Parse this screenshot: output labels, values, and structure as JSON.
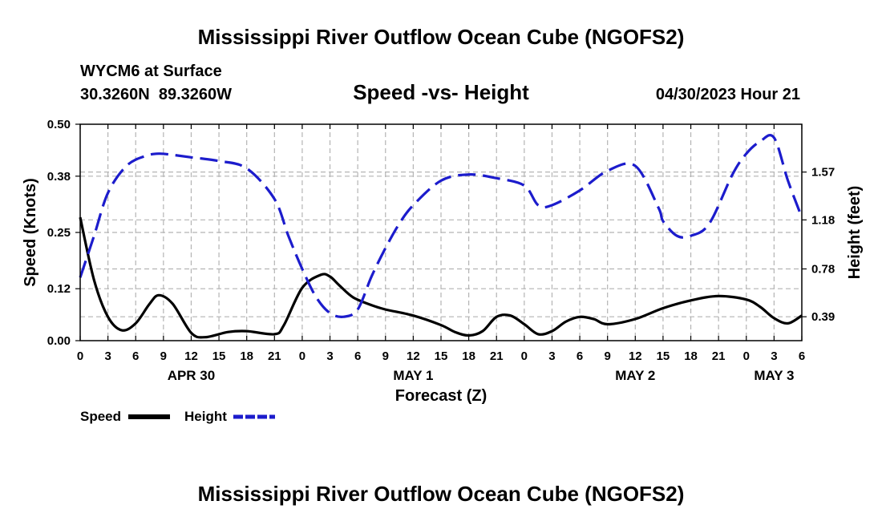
{
  "page": {
    "title": "Mississippi River Outflow Ocean Cube (NGOFS2)",
    "footer_title": "Mississippi River Outflow Ocean Cube (NGOFS2)"
  },
  "header": {
    "station": "WYCM6 at Surface",
    "coords": "30.3260N  89.3260W",
    "subtitle": "Speed -vs- Height",
    "datetime": "04/30/2023 Hour 21"
  },
  "chart_data": {
    "type": "line",
    "title": "Speed -vs- Height",
    "xlabel": "Forecast (Z)",
    "ylabel": "Speed (Knots)",
    "y2label": "Height (feet)",
    "x_range_hours": [
      0,
      78
    ],
    "xtick_hours": [
      0,
      3,
      6,
      9,
      12,
      15,
      18,
      21,
      24,
      27,
      30,
      33,
      36,
      39,
      42,
      45,
      48,
      51,
      54,
      57,
      60,
      63,
      66,
      69,
      72,
      75,
      78
    ],
    "xtick_labels": [
      "0",
      "3",
      "6",
      "9",
      "12",
      "15",
      "18",
      "21",
      "0",
      "3",
      "6",
      "9",
      "12",
      "15",
      "18",
      "21",
      "0",
      "3",
      "6",
      "9",
      "12",
      "15",
      "18",
      "21",
      "0",
      "3",
      "6"
    ],
    "date_labels": [
      {
        "text": "APR 30",
        "hour": 12
      },
      {
        "text": "MAY 1",
        "hour": 36
      },
      {
        "text": "MAY 2",
        "hour": 60
      },
      {
        "text": "MAY 3",
        "hour": 75
      }
    ],
    "ylim": [
      0,
      0.5
    ],
    "yticks": [
      0.0,
      0.12,
      0.25,
      0.38,
      0.5
    ],
    "ytick_labels": [
      "0.00",
      "0.12",
      "0.25",
      "0.38",
      "0.50"
    ],
    "y2lim": [
      0.195,
      1.96
    ],
    "y2ticks": [
      0.39,
      0.78,
      1.18,
      1.57
    ],
    "y2tick_labels": [
      "0.39",
      "0.78",
      "1.18",
      "1.57"
    ],
    "series": [
      {
        "name": "Speed",
        "axis": "left",
        "color": "#000000",
        "style": "solid",
        "x": [
          0,
          1.5,
          3,
          4.5,
          6,
          7.5,
          8.5,
          10,
          12,
          13.5,
          16,
          18,
          21,
          22,
          24,
          26,
          27,
          28,
          29.5,
          31.5,
          33,
          36,
          39,
          40.5,
          42,
          43.5,
          45,
          46.5,
          48,
          49.5,
          51,
          52.5,
          54,
          55.5,
          57,
          60,
          63,
          66,
          69,
          72,
          73.5,
          75,
          76.5,
          78
        ],
        "values": [
          0.285,
          0.14,
          0.055,
          0.024,
          0.04,
          0.085,
          0.105,
          0.085,
          0.018,
          0.008,
          0.02,
          0.022,
          0.015,
          0.035,
          0.122,
          0.152,
          0.148,
          0.128,
          0.1,
          0.082,
          0.072,
          0.058,
          0.036,
          0.02,
          0.012,
          0.022,
          0.055,
          0.058,
          0.038,
          0.015,
          0.022,
          0.044,
          0.055,
          0.05,
          0.038,
          0.05,
          0.075,
          0.093,
          0.103,
          0.095,
          0.078,
          0.052,
          0.04,
          0.058
        ]
      },
      {
        "name": "Height",
        "axis": "right",
        "color": "#1c1ccc",
        "style": "dashed",
        "x": [
          0,
          1.5,
          3,
          5,
          7,
          8.5,
          10,
          12,
          15,
          18,
          21,
          22.5,
          24,
          25.5,
          27,
          28.5,
          30,
          31.5,
          33,
          34.5,
          36,
          39,
          42,
          45,
          48,
          49.5,
          51,
          54,
          57,
          60,
          62.5,
          63,
          64.5,
          66,
          68,
          70.5,
          72,
          73.5,
          75,
          76.5,
          78
        ],
        "values": [
          0.71,
          1.05,
          1.4,
          1.62,
          1.7,
          1.72,
          1.71,
          1.69,
          1.66,
          1.6,
          1.35,
          1.05,
          0.78,
          0.55,
          0.42,
          0.39,
          0.45,
          0.72,
          0.95,
          1.15,
          1.3,
          1.5,
          1.55,
          1.52,
          1.46,
          1.3,
          1.3,
          1.42,
          1.58,
          1.62,
          1.28,
          1.17,
          1.05,
          1.05,
          1.15,
          1.55,
          1.72,
          1.82,
          1.85,
          1.5,
          1.2
        ]
      }
    ],
    "legend": [
      {
        "label": "Speed",
        "color": "#000000",
        "style": "solid"
      },
      {
        "label": "Height",
        "color": "#1c1ccc",
        "style": "dashed"
      }
    ],
    "grid": true
  }
}
